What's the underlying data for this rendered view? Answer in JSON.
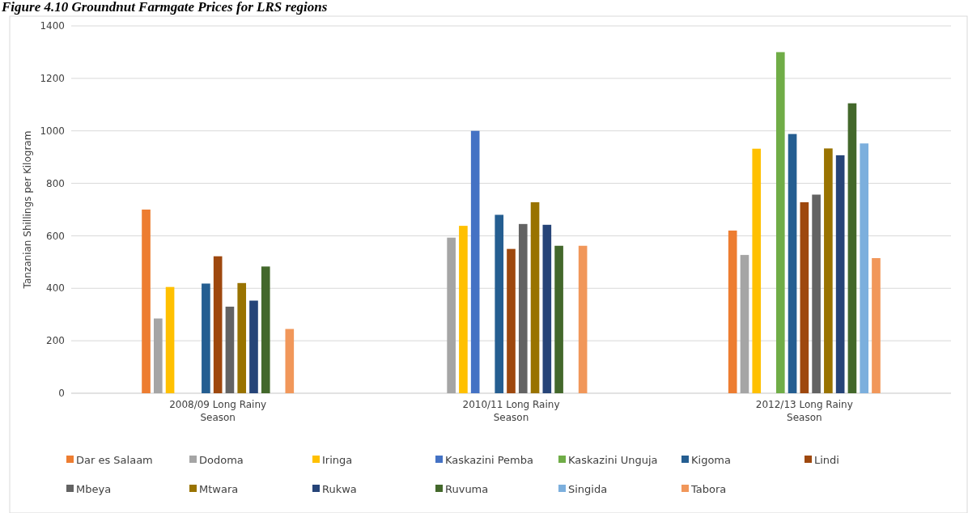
{
  "chart_data": {
    "type": "bar",
    "title": "Figure 4.10 Groundnut Farmgate Prices for LRS regions",
    "ylabel": "Tanzanian Shillings per Kilogram",
    "categories": [
      "2008/09 Long Rainy Season",
      "2010/11 Long Rainy Season",
      "2012/13 Long Rainy Season"
    ],
    "ylim": [
      0,
      1400
    ],
    "yticks": [
      0,
      200,
      400,
      600,
      800,
      1000,
      1200,
      1400
    ],
    "grid": "y",
    "legend": "bottom",
    "series": [
      {
        "name": "Dar es Salaam",
        "color": "#ed7d31",
        "values": [
          700,
          null,
          620
        ]
      },
      {
        "name": "Dodoma",
        "color": "#a5a5a5",
        "values": [
          285,
          593,
          527
        ]
      },
      {
        "name": "Iringa",
        "color": "#ffc000",
        "values": [
          405,
          638,
          932
        ]
      },
      {
        "name": "Kaskazini Pemba",
        "color": "#4472c4",
        "values": [
          null,
          1000,
          null
        ]
      },
      {
        "name": "Kaskazini Unguja",
        "color": "#70ad47",
        "values": [
          null,
          null,
          1300
        ]
      },
      {
        "name": "Kigoma",
        "color": "#255e91",
        "values": [
          418,
          680,
          988
        ]
      },
      {
        "name": "Lindi",
        "color": "#9e480e",
        "values": [
          522,
          550,
          728
        ]
      },
      {
        "name": "Mbeya",
        "color": "#636363",
        "values": [
          330,
          645,
          757
        ]
      },
      {
        "name": "Mtwara",
        "color": "#997300",
        "values": [
          420,
          728,
          933
        ]
      },
      {
        "name": "Rukwa",
        "color": "#264478",
        "values": [
          353,
          642,
          907
        ]
      },
      {
        "name": "Ruvuma",
        "color": "#43682b",
        "values": [
          483,
          562,
          1105
        ]
      },
      {
        "name": "Singida",
        "color": "#7cafdd",
        "values": [
          null,
          null,
          952
        ]
      },
      {
        "name": "Tabora",
        "color": "#f1975a",
        "values": [
          245,
          562,
          515
        ]
      }
    ]
  }
}
